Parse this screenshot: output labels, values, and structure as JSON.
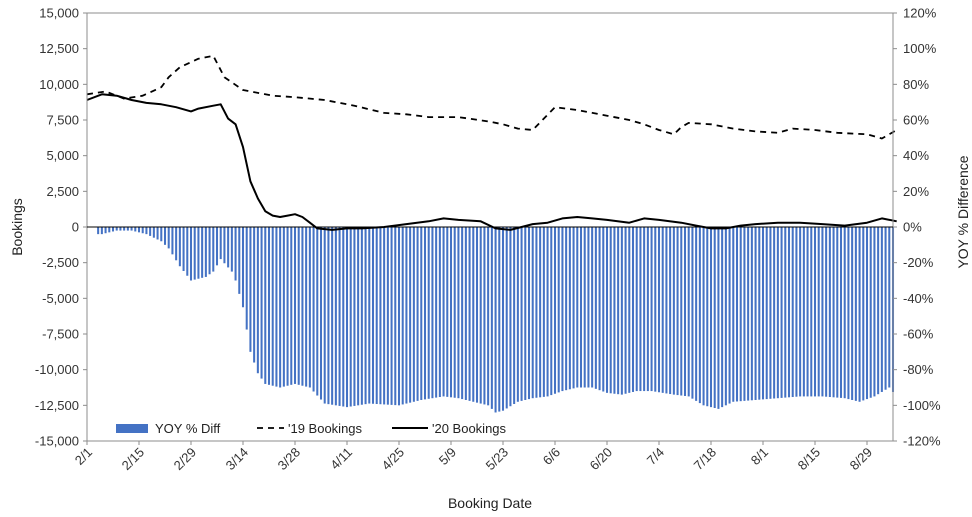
{
  "chart_data": {
    "type": "bar+line",
    "xlabel": "Booking Date",
    "ylabel_left": "Bookings",
    "ylabel_right": "YOY % Difference",
    "ylim_left": [
      -15000,
      15000
    ],
    "ylim_right": [
      -120,
      120
    ],
    "x_range_days": [
      0,
      217
    ],
    "x_ticks": [
      {
        "label": "2/1",
        "day": 0
      },
      {
        "label": "2/15",
        "day": 14
      },
      {
        "label": "2/29",
        "day": 28
      },
      {
        "label": "3/14",
        "day": 42
      },
      {
        "label": "3/28",
        "day": 56
      },
      {
        "label": "4/11",
        "day": 70
      },
      {
        "label": "4/25",
        "day": 84
      },
      {
        "label": "5/9",
        "day": 98
      },
      {
        "label": "5/23",
        "day": 112
      },
      {
        "label": "6/6",
        "day": 126
      },
      {
        "label": "6/20",
        "day": 140
      },
      {
        "label": "7/4",
        "day": 154
      },
      {
        "label": "7/18",
        "day": 168
      },
      {
        "label": "8/1",
        "day": 182
      },
      {
        "label": "8/15",
        "day": 196
      },
      {
        "label": "8/29",
        "day": 210
      }
    ],
    "y_left_ticks": [
      "15,000",
      "12,500",
      "10,000",
      "7,500",
      "5,000",
      "2,500",
      "0",
      "-2,500",
      "-5,000",
      "-7,500",
      "-10,000",
      "-12,500",
      "-15,000"
    ],
    "y_left_values": [
      15000,
      12500,
      10000,
      7500,
      5000,
      2500,
      0,
      -2500,
      -5000,
      -7500,
      -10000,
      -12500,
      -15000
    ],
    "y_right_ticks": [
      "120%",
      "100%",
      "80%",
      "60%",
      "40%",
      "20%",
      "0%",
      "-20%",
      "-40%",
      "-60%",
      "-80%",
      "-100%",
      "-120%"
    ],
    "y_right_values": [
      120,
      100,
      80,
      60,
      40,
      20,
      0,
      -20,
      -40,
      -60,
      -80,
      -100,
      -120
    ],
    "legend": {
      "placement": "bottom-left",
      "entries": [
        "YOY % Diff",
        "'19 Bookings",
        "'20 Bookings"
      ]
    },
    "colors": {
      "bars": "#4472c4",
      "line19": "#000000",
      "line20": "#000000"
    },
    "series": [
      {
        "name": "YOY % Diff",
        "kind": "bar",
        "axis": "right",
        "points": [
          [
            4,
            -4
          ],
          [
            8,
            -2
          ],
          [
            12,
            -2
          ],
          [
            16,
            -4
          ],
          [
            20,
            -8
          ],
          [
            22,
            -12
          ],
          [
            25,
            -22
          ],
          [
            28,
            -30
          ],
          [
            32,
            -28
          ],
          [
            34,
            -25
          ],
          [
            36,
            -18
          ],
          [
            39,
            -25
          ],
          [
            40,
            -30
          ],
          [
            42,
            -45
          ],
          [
            44,
            -70
          ],
          [
            46,
            -82
          ],
          [
            48,
            -88
          ],
          [
            52,
            -90
          ],
          [
            56,
            -88
          ],
          [
            60,
            -90
          ],
          [
            64,
            -99
          ],
          [
            70,
            -101
          ],
          [
            76,
            -99
          ],
          [
            84,
            -100
          ],
          [
            90,
            -97
          ],
          [
            96,
            -95
          ],
          [
            100,
            -96
          ],
          [
            104,
            -98
          ],
          [
            108,
            -100
          ],
          [
            110,
            -104
          ],
          [
            112,
            -103
          ],
          [
            116,
            -98
          ],
          [
            120,
            -96
          ],
          [
            124,
            -95
          ],
          [
            128,
            -92
          ],
          [
            132,
            -90
          ],
          [
            136,
            -90
          ],
          [
            140,
            -93
          ],
          [
            144,
            -94
          ],
          [
            148,
            -92
          ],
          [
            152,
            -92
          ],
          [
            158,
            -94
          ],
          [
            162,
            -95
          ],
          [
            166,
            -100
          ],
          [
            170,
            -102
          ],
          [
            174,
            -98
          ],
          [
            180,
            -97
          ],
          [
            186,
            -96
          ],
          [
            192,
            -95
          ],
          [
            198,
            -95
          ],
          [
            204,
            -96
          ],
          [
            208,
            -98
          ],
          [
            212,
            -95
          ],
          [
            216,
            -90
          ],
          [
            218,
            -95
          ]
        ]
      },
      {
        "name": "'19 Bookings",
        "kind": "line",
        "axis": "left",
        "dash": "6,5",
        "points": [
          [
            0,
            9300
          ],
          [
            5,
            9500
          ],
          [
            10,
            9000
          ],
          [
            15,
            9200
          ],
          [
            20,
            9800
          ],
          [
            22,
            10500
          ],
          [
            25,
            11200
          ],
          [
            30,
            11800
          ],
          [
            34,
            12000
          ],
          [
            37,
            10500
          ],
          [
            42,
            9600
          ],
          [
            50,
            9200
          ],
          [
            56,
            9100
          ],
          [
            64,
            8900
          ],
          [
            72,
            8500
          ],
          [
            80,
            8000
          ],
          [
            86,
            7900
          ],
          [
            92,
            7700
          ],
          [
            100,
            7700
          ],
          [
            108,
            7400
          ],
          [
            112,
            7200
          ],
          [
            116,
            6900
          ],
          [
            120,
            6800
          ],
          [
            126,
            8400
          ],
          [
            132,
            8200
          ],
          [
            140,
            7800
          ],
          [
            146,
            7500
          ],
          [
            150,
            7200
          ],
          [
            154,
            6800
          ],
          [
            158,
            6500
          ],
          [
            160,
            7000
          ],
          [
            162,
            7300
          ],
          [
            168,
            7200
          ],
          [
            174,
            6900
          ],
          [
            180,
            6700
          ],
          [
            186,
            6600
          ],
          [
            190,
            6900
          ],
          [
            196,
            6800
          ],
          [
            202,
            6600
          ],
          [
            210,
            6500
          ],
          [
            214,
            6200
          ],
          [
            218,
            6800
          ]
        ]
      },
      {
        "name": "'20 Bookings",
        "kind": "line",
        "axis": "left",
        "dash": "none",
        "points": [
          [
            0,
            8900
          ],
          [
            4,
            9300
          ],
          [
            8,
            9200
          ],
          [
            12,
            8900
          ],
          [
            16,
            8700
          ],
          [
            20,
            8600
          ],
          [
            24,
            8400
          ],
          [
            28,
            8100
          ],
          [
            30,
            8300
          ],
          [
            34,
            8500
          ],
          [
            36,
            8600
          ],
          [
            38,
            7600
          ],
          [
            40,
            7200
          ],
          [
            42,
            5600
          ],
          [
            44,
            3200
          ],
          [
            46,
            2000
          ],
          [
            48,
            1100
          ],
          [
            50,
            800
          ],
          [
            52,
            700
          ],
          [
            54,
            800
          ],
          [
            56,
            900
          ],
          [
            58,
            700
          ],
          [
            60,
            300
          ],
          [
            62,
            -100
          ],
          [
            66,
            -200
          ],
          [
            70,
            -100
          ],
          [
            74,
            -100
          ],
          [
            80,
            0
          ],
          [
            86,
            200
          ],
          [
            92,
            400
          ],
          [
            96,
            600
          ],
          [
            100,
            500
          ],
          [
            106,
            400
          ],
          [
            110,
            -100
          ],
          [
            114,
            -200
          ],
          [
            120,
            200
          ],
          [
            124,
            300
          ],
          [
            128,
            600
          ],
          [
            132,
            700
          ],
          [
            136,
            600
          ],
          [
            140,
            500
          ],
          [
            146,
            300
          ],
          [
            150,
            600
          ],
          [
            154,
            500
          ],
          [
            160,
            300
          ],
          [
            164,
            100
          ],
          [
            168,
            -100
          ],
          [
            172,
            -100
          ],
          [
            176,
            100
          ],
          [
            180,
            200
          ],
          [
            186,
            300
          ],
          [
            192,
            300
          ],
          [
            198,
            200
          ],
          [
            204,
            100
          ],
          [
            210,
            300
          ],
          [
            214,
            600
          ],
          [
            218,
            400
          ]
        ]
      }
    ]
  }
}
